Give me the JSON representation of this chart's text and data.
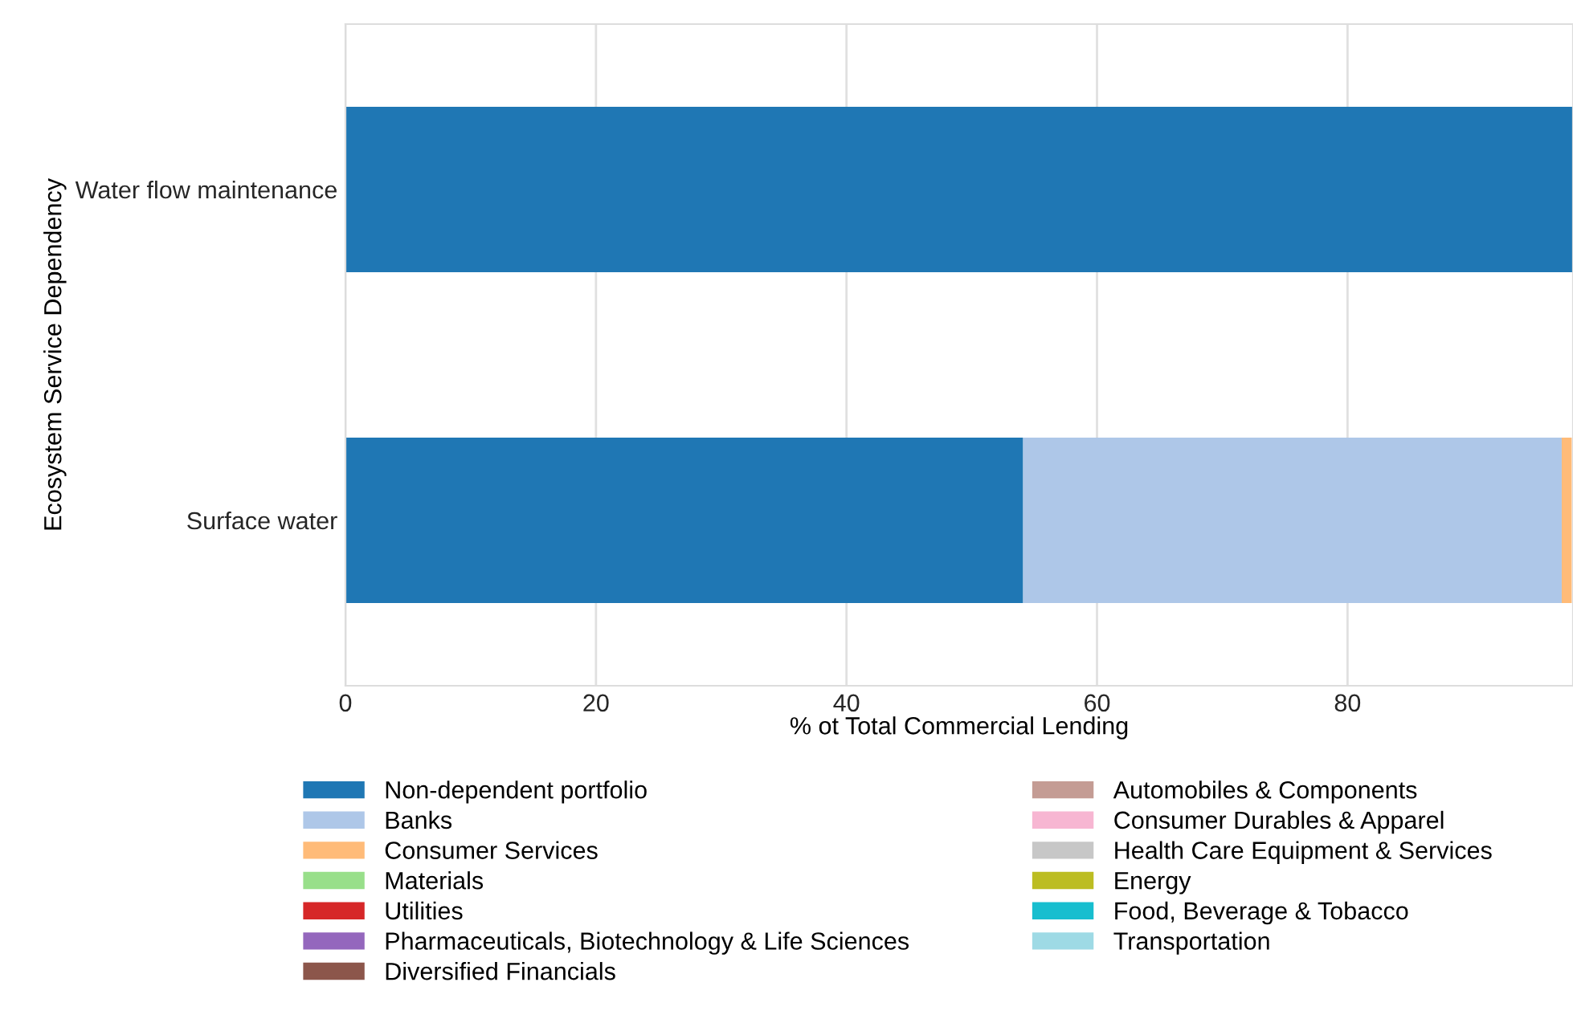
{
  "chart_data": {
    "type": "bar",
    "orientation": "horizontal",
    "stacked": true,
    "xlabel": "% ot Total Commercial Lending",
    "ylabel": "Ecosystem Service Dependency",
    "categories": [
      "Water flow maintenance",
      "Surface water"
    ],
    "xlim": [
      0,
      98
    ],
    "xticks": [
      0,
      20,
      40,
      60,
      80
    ],
    "grid": "x",
    "legend": "bottom",
    "series": [
      {
        "name": "Non-dependent portfolio",
        "color": "#1f77b4",
        "values": [
          98,
          54.1
        ]
      },
      {
        "name": "Banks",
        "color": "#aec7e8",
        "values": [
          0,
          43.0
        ]
      },
      {
        "name": "Consumer Services",
        "color": "#ffbb78",
        "values": [
          0,
          0.8
        ]
      },
      {
        "name": "Materials",
        "color": "#98df8a",
        "values": [
          0,
          0
        ]
      },
      {
        "name": "Utilities",
        "color": "#d62728",
        "values": [
          0,
          0
        ]
      },
      {
        "name": "Pharmaceuticals, Biotechnology & Life Sciences",
        "color": "#9467bd",
        "values": [
          0,
          0
        ]
      },
      {
        "name": "Diversified Financials",
        "color": "#8c564b",
        "values": [
          0,
          0
        ]
      },
      {
        "name": "Automobiles & Components",
        "color": "#c49c94",
        "values": [
          0,
          0
        ]
      },
      {
        "name": "Consumer Durables & Apparel",
        "color": "#f7b6d2",
        "values": [
          0,
          0
        ]
      },
      {
        "name": "Health Care Equipment & Services",
        "color": "#c7c7c7",
        "values": [
          0,
          0
        ]
      },
      {
        "name": "Energy",
        "color": "#bcbd22",
        "values": [
          0,
          0
        ]
      },
      {
        "name": "Food, Beverage & Tobacco",
        "color": "#17becf",
        "values": [
          0,
          0
        ]
      },
      {
        "name": "Transportation",
        "color": "#9edae5",
        "values": [
          0,
          0
        ]
      }
    ]
  }
}
